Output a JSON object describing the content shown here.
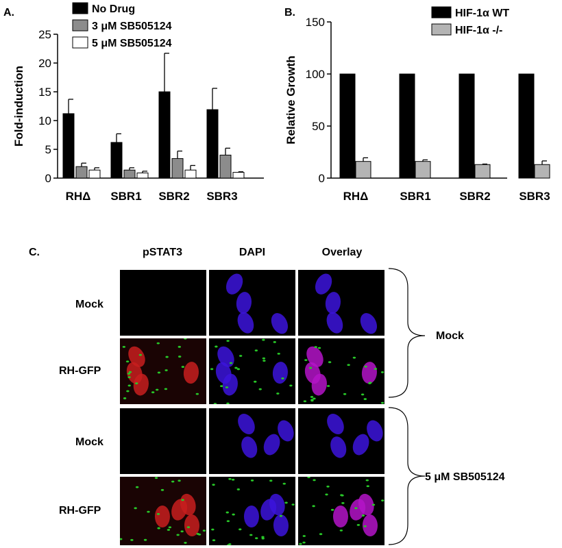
{
  "panels": {
    "a": "A.",
    "b": "B.",
    "c": "C."
  },
  "chart_data": [
    {
      "type": "bar",
      "ylabel": "Fold-induction",
      "ylim": [
        0,
        25
      ],
      "yticks": [
        "0",
        "5",
        "10",
        "15",
        "20",
        "25"
      ],
      "categories": [
        "RHΔ",
        "SBR1",
        "SBR2",
        "SBR3"
      ],
      "legend": "top",
      "series": [
        {
          "name": "No Drug",
          "color": "#000000",
          "values": [
            11.2,
            6.2,
            15.0,
            11.9
          ],
          "errors": [
            2.5,
            1.5,
            6.7,
            3.7
          ]
        },
        {
          "name": "3 μM SB505124",
          "color": "#8c8c8c",
          "values": [
            2.0,
            1.4,
            3.4,
            4.0
          ],
          "errors": [
            0.6,
            0.4,
            1.3,
            1.2
          ]
        },
        {
          "name": "5 μM SB505124",
          "color": "#ffffff",
          "values": [
            1.4,
            0.9,
            1.4,
            1.0
          ],
          "errors": [
            0.4,
            0.3,
            0.8,
            0.1
          ]
        }
      ]
    },
    {
      "type": "bar",
      "ylabel": "Relative Growth",
      "ylim": [
        0,
        150
      ],
      "yticks": [
        "0",
        "50",
        "100",
        "150"
      ],
      "categories": [
        "RHΔ",
        "SBR1",
        "SBR2",
        "SBR3"
      ],
      "legend": "top-right",
      "series": [
        {
          "name": "HIF-1α WT",
          "color": "#000000",
          "values": [
            100,
            100,
            100,
            100
          ],
          "errors": [
            0,
            0,
            0,
            0
          ]
        },
        {
          "name": "HIF-1α -/-",
          "color": "#b4b4b4",
          "values": [
            16,
            16,
            13,
            13
          ],
          "errors": [
            3.5,
            1.5,
            0.5,
            3.5
          ]
        }
      ]
    }
  ],
  "microscopy": {
    "columns": [
      "pSTAT3",
      "DAPI",
      "Overlay"
    ],
    "rows": [
      "Mock",
      "RH-GFP",
      "Mock",
      "RH-GFP"
    ],
    "groups": [
      "Mock",
      "5 μM SB505124"
    ],
    "channel_colors": {
      "pstat3": "#c81e1e",
      "dapi": "#3c14dc",
      "overlay": "#b414c8",
      "gfp": "#28c828"
    }
  }
}
